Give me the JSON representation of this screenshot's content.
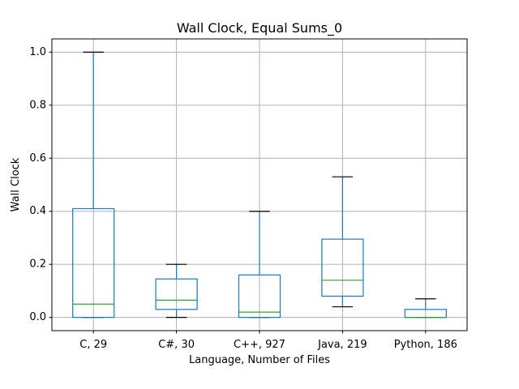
{
  "chart_data": {
    "type": "box",
    "title": "Wall Clock, Equal Sums_0",
    "xlabel": "Language, Number of Files",
    "ylabel": "Wall Clock",
    "ylim": [
      -0.05,
      1.05
    ],
    "yticks": [
      0.0,
      0.2,
      0.4,
      0.6,
      0.8,
      1.0
    ],
    "ytick_labels": [
      "0.0",
      "0.2",
      "0.4",
      "0.6",
      "0.8",
      "1.0"
    ],
    "grid": true,
    "categories": [
      "C, 29",
      "C#, 30",
      "C++, 927",
      "Java, 219",
      "Python, 186"
    ],
    "boxes": [
      {
        "whisker_low": 0.0,
        "q1": 0.0,
        "median": 0.05,
        "q3": 0.41,
        "whisker_high": 1.0
      },
      {
        "whisker_low": 0.0,
        "q1": 0.03,
        "median": 0.065,
        "q3": 0.145,
        "whisker_high": 0.2
      },
      {
        "whisker_low": 0.0,
        "q1": 0.0,
        "median": 0.02,
        "q3": 0.16,
        "whisker_high": 0.4
      },
      {
        "whisker_low": 0.04,
        "q1": 0.08,
        "median": 0.14,
        "q3": 0.295,
        "whisker_high": 0.53
      },
      {
        "whisker_low": 0.0,
        "q1": 0.0,
        "median": 0.0,
        "q3": 0.03,
        "whisker_high": 0.07
      }
    ],
    "colors": {
      "box": "#1f77b4",
      "median": "#2ca02c",
      "cap": "#000000",
      "grid": "#b0b0b0"
    }
  }
}
